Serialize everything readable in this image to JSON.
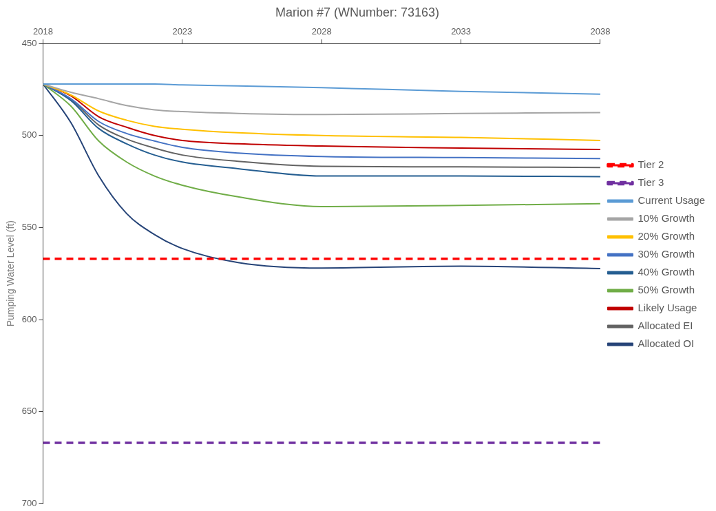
{
  "chart_data": {
    "type": "line",
    "title": "Marion #7 (WNumber: 73163)",
    "ylabel": "Pumping Water Level (ft)",
    "x": [
      2018,
      2019,
      2020,
      2021,
      2022,
      2023,
      2025,
      2028,
      2033,
      2038
    ],
    "xlim": [
      2018,
      2038
    ],
    "xticks": [
      2018,
      2023,
      2028,
      2033,
      2038
    ],
    "ylim": [
      700,
      450
    ],
    "yticks": [
      450,
      500,
      550,
      600,
      650,
      700
    ],
    "grid": false,
    "legend": "right",
    "marker": "none",
    "line_style": "solid",
    "series": [
      {
        "name": "Tier 2",
        "color": "#ff0000",
        "line_style": "dashed",
        "values": [
          567,
          567,
          567,
          567,
          567,
          567,
          567,
          567,
          567,
          567
        ]
      },
      {
        "name": "Tier 3",
        "color": "#7030a0",
        "line_style": "dashed",
        "values": [
          667,
          667,
          667,
          667,
          667,
          667,
          667,
          667,
          667,
          667
        ]
      },
      {
        "name": "Current Usage",
        "color": "#5b9bd5",
        "values": [
          472,
          472,
          472,
          472,
          472,
          472.5,
          473,
          474,
          476,
          477.5
        ]
      },
      {
        "name": "10% Growth",
        "color": "#a5a5a5",
        "values": [
          472,
          476.5,
          480,
          483.7,
          486,
          487,
          488,
          488.6,
          488,
          487.5
        ]
      },
      {
        "name": "20% Growth",
        "color": "#ffc000",
        "values": [
          472,
          478,
          486.7,
          491.7,
          495,
          496.6,
          498.5,
          500,
          501,
          502.7
        ]
      },
      {
        "name": "30% Growth",
        "color": "#4472c4",
        "values": [
          472,
          480,
          492.4,
          498.9,
          503,
          506.4,
          509.5,
          511.4,
          512,
          512.5
        ]
      },
      {
        "name": "40% Growth",
        "color": "#255e91",
        "values": [
          472,
          481,
          496.2,
          504.5,
          510.6,
          514.4,
          518,
          522,
          522,
          522.3
        ]
      },
      {
        "name": "50% Growth",
        "color": "#70ad47",
        "values": [
          472,
          484,
          503,
          514.4,
          522,
          527,
          533.3,
          538.6,
          538,
          537
        ]
      },
      {
        "name": "Likely Usage",
        "color": "#c00000",
        "values": [
          472,
          478.4,
          489.8,
          495.5,
          500,
          502.7,
          504.5,
          505.7,
          506.8,
          507.6
        ]
      },
      {
        "name": "Allocated EI",
        "color": "#636363",
        "values": [
          472,
          480.3,
          494.3,
          501.9,
          506.8,
          510.6,
          514,
          516.7,
          517,
          517.4
        ]
      },
      {
        "name": "Allocated OI",
        "color": "#264478",
        "values": [
          472,
          493,
          522,
          542.4,
          553.8,
          561.4,
          569,
          572,
          571,
          572.3
        ]
      }
    ]
  }
}
